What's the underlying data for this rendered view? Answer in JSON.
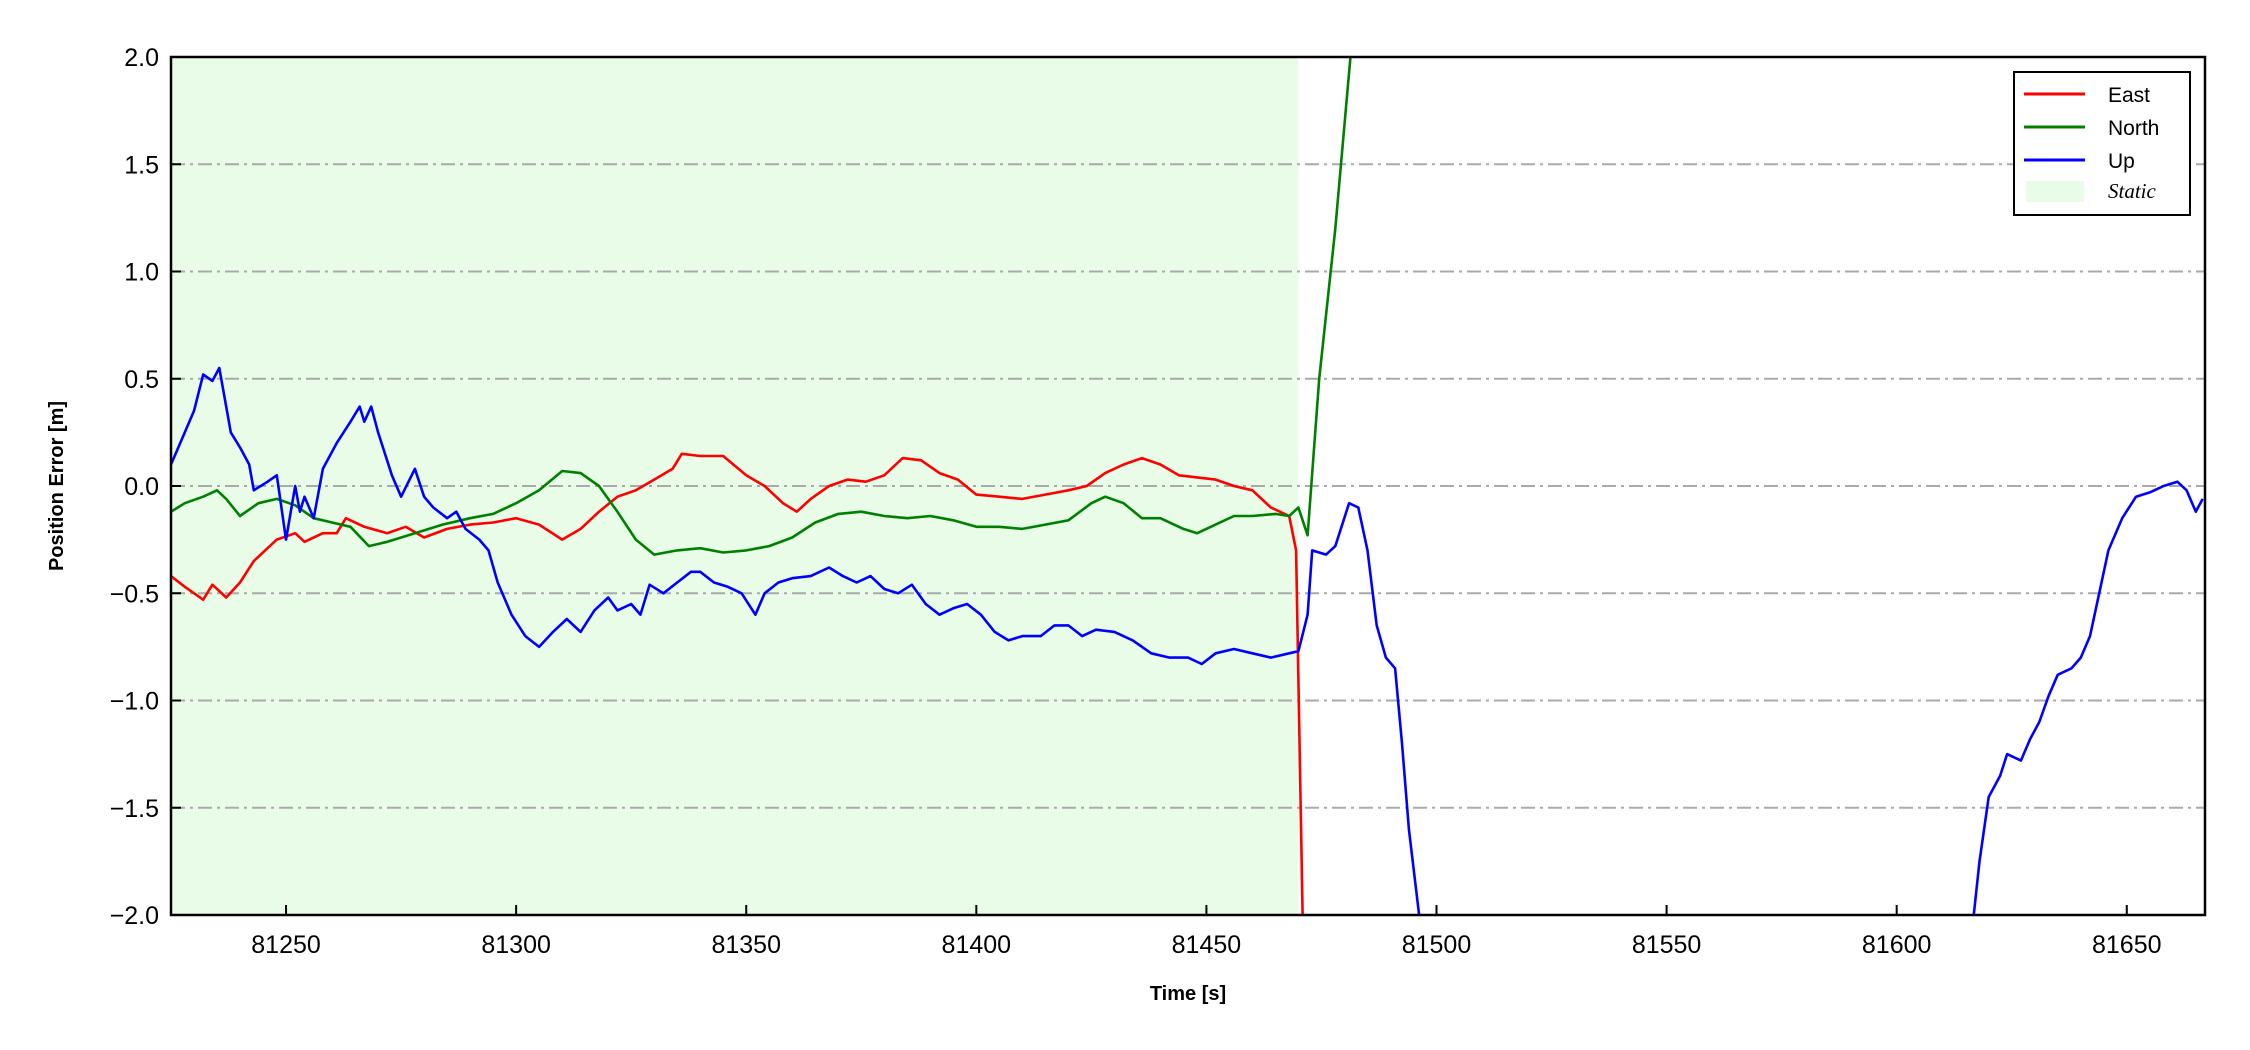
{
  "chart_data": {
    "type": "line",
    "xlabel": "Time [s]",
    "ylabel": "Position Error [m]",
    "xlim": [
      81225,
      81667
    ],
    "ylim": [
      -2.0,
      2.0
    ],
    "xticks": [
      81250,
      81300,
      81350,
      81400,
      81450,
      81500,
      81550,
      81600,
      81650
    ],
    "xtick_labels": [
      "81250",
      "81300",
      "81350",
      "81400",
      "81450",
      "81500",
      "81550",
      "81600",
      "81650"
    ],
    "yticks": [
      -2.0,
      -1.5,
      -1.0,
      -0.5,
      0.0,
      0.5,
      1.0,
      1.5,
      2.0
    ],
    "ytick_labels": [
      "−2.0",
      "−1.5",
      "−1.0",
      "−0.5",
      "0.0",
      "0.5",
      "1.0",
      "1.5",
      "2.0"
    ],
    "grid": "horizontal dash-dot",
    "legend_position": "top-right",
    "static_region": {
      "name": "Static",
      "x_start": 81225,
      "x_end": 81470,
      "color": "#e8fce8"
    },
    "series": [
      {
        "name": "East",
        "color": "#ff0000",
        "points": [
          [
            81225,
            -0.42
          ],
          [
            81228,
            -0.47
          ],
          [
            81232,
            -0.53
          ],
          [
            81234,
            -0.46
          ],
          [
            81237,
            -0.52
          ],
          [
            81240,
            -0.45
          ],
          [
            81243,
            -0.35
          ],
          [
            81248,
            -0.25
          ],
          [
            81252,
            -0.22
          ],
          [
            81254,
            -0.26
          ],
          [
            81258,
            -0.22
          ],
          [
            81261,
            -0.22
          ],
          [
            81263,
            -0.15
          ],
          [
            81267,
            -0.19
          ],
          [
            81272,
            -0.22
          ],
          [
            81276,
            -0.19
          ],
          [
            81280,
            -0.24
          ],
          [
            81285,
            -0.2
          ],
          [
            81290,
            -0.18
          ],
          [
            81295,
            -0.17
          ],
          [
            81300,
            -0.15
          ],
          [
            81305,
            -0.18
          ],
          [
            81310,
            -0.25
          ],
          [
            81314,
            -0.2
          ],
          [
            81318,
            -0.12
          ],
          [
            81322,
            -0.05
          ],
          [
            81326,
            -0.02
          ],
          [
            81330,
            0.03
          ],
          [
            81334,
            0.08
          ],
          [
            81336,
            0.15
          ],
          [
            81340,
            0.14
          ],
          [
            81345,
            0.14
          ],
          [
            81350,
            0.05
          ],
          [
            81354,
            0.0
          ],
          [
            81358,
            -0.08
          ],
          [
            81361,
            -0.12
          ],
          [
            81364,
            -0.06
          ],
          [
            81368,
            0.0
          ],
          [
            81372,
            0.03
          ],
          [
            81376,
            0.02
          ],
          [
            81380,
            0.05
          ],
          [
            81384,
            0.13
          ],
          [
            81388,
            0.12
          ],
          [
            81392,
            0.06
          ],
          [
            81396,
            0.03
          ],
          [
            81400,
            -0.04
          ],
          [
            81405,
            -0.05
          ],
          [
            81410,
            -0.06
          ],
          [
            81415,
            -0.04
          ],
          [
            81420,
            -0.02
          ],
          [
            81424,
            0.0
          ],
          [
            81428,
            0.06
          ],
          [
            81432,
            0.1
          ],
          [
            81436,
            0.13
          ],
          [
            81440,
            0.1
          ],
          [
            81444,
            0.05
          ],
          [
            81448,
            0.04
          ],
          [
            81452,
            0.03
          ],
          [
            81456,
            0.0
          ],
          [
            81460,
            -0.02
          ],
          [
            81464,
            -0.1
          ],
          [
            81468,
            -0.14
          ],
          [
            81469.5,
            -0.3
          ],
          [
            81471,
            -2.1
          ]
        ]
      },
      {
        "name": "North",
        "color": "#008000",
        "points": [
          [
            81225,
            -0.12
          ],
          [
            81228,
            -0.08
          ],
          [
            81232,
            -0.05
          ],
          [
            81235,
            -0.02
          ],
          [
            81237,
            -0.06
          ],
          [
            81240,
            -0.14
          ],
          [
            81244,
            -0.08
          ],
          [
            81248,
            -0.06
          ],
          [
            81252,
            -0.09
          ],
          [
            81256,
            -0.15
          ],
          [
            81260,
            -0.17
          ],
          [
            81264,
            -0.19
          ],
          [
            81268,
            -0.28
          ],
          [
            81272,
            -0.26
          ],
          [
            81278,
            -0.22
          ],
          [
            81284,
            -0.18
          ],
          [
            81290,
            -0.15
          ],
          [
            81295,
            -0.13
          ],
          [
            81300,
            -0.08
          ],
          [
            81305,
            -0.02
          ],
          [
            81310,
            0.07
          ],
          [
            81314,
            0.06
          ],
          [
            81318,
            0.0
          ],
          [
            81322,
            -0.12
          ],
          [
            81326,
            -0.25
          ],
          [
            81330,
            -0.32
          ],
          [
            81335,
            -0.3
          ],
          [
            81340,
            -0.29
          ],
          [
            81345,
            -0.31
          ],
          [
            81350,
            -0.3
          ],
          [
            81355,
            -0.28
          ],
          [
            81360,
            -0.24
          ],
          [
            81365,
            -0.17
          ],
          [
            81370,
            -0.13
          ],
          [
            81375,
            -0.12
          ],
          [
            81380,
            -0.14
          ],
          [
            81385,
            -0.15
          ],
          [
            81390,
            -0.14
          ],
          [
            81395,
            -0.16
          ],
          [
            81400,
            -0.19
          ],
          [
            81405,
            -0.19
          ],
          [
            81410,
            -0.2
          ],
          [
            81415,
            -0.18
          ],
          [
            81420,
            -0.16
          ],
          [
            81425,
            -0.08
          ],
          [
            81428,
            -0.05
          ],
          [
            81432,
            -0.08
          ],
          [
            81436,
            -0.15
          ],
          [
            81440,
            -0.15
          ],
          [
            81445,
            -0.2
          ],
          [
            81448,
            -0.22
          ],
          [
            81452,
            -0.18
          ],
          [
            81456,
            -0.14
          ],
          [
            81460,
            -0.14
          ],
          [
            81465,
            -0.13
          ],
          [
            81468,
            -0.14
          ],
          [
            81470,
            -0.1
          ],
          [
            81472,
            -0.23
          ],
          [
            81474.5,
            0.5
          ],
          [
            81478,
            1.2
          ],
          [
            81481.5,
            2.05
          ]
        ]
      },
      {
        "name": "Up",
        "color": "#0000ff",
        "points": [
          [
            81225,
            0.1
          ],
          [
            81227,
            0.2
          ],
          [
            81230,
            0.35
          ],
          [
            81232,
            0.52
          ],
          [
            81234,
            0.49
          ],
          [
            81235.5,
            0.55
          ],
          [
            81238,
            0.25
          ],
          [
            81240,
            0.18
          ],
          [
            81242,
            0.1
          ],
          [
            81243,
            -0.02
          ],
          [
            81246,
            0.02
          ],
          [
            81248,
            0.05
          ],
          [
            81250,
            -0.25
          ],
          [
            81252,
            0.0
          ],
          [
            81253,
            -0.12
          ],
          [
            81254,
            -0.05
          ],
          [
            81256,
            -0.15
          ],
          [
            81258,
            0.08
          ],
          [
            81261,
            0.2
          ],
          [
            81264,
            0.3
          ],
          [
            81266,
            0.37
          ],
          [
            81267,
            0.3
          ],
          [
            81268.5,
            0.37
          ],
          [
            81270,
            0.25
          ],
          [
            81273,
            0.05
          ],
          [
            81275,
            -0.05
          ],
          [
            81278,
            0.08
          ],
          [
            81280,
            -0.05
          ],
          [
            81282,
            -0.1
          ],
          [
            81285,
            -0.15
          ],
          [
            81287,
            -0.12
          ],
          [
            81289,
            -0.2
          ],
          [
            81292,
            -0.25
          ],
          [
            81294,
            -0.3
          ],
          [
            81296,
            -0.45
          ],
          [
            81299,
            -0.6
          ],
          [
            81302,
            -0.7
          ],
          [
            81305,
            -0.75
          ],
          [
            81308,
            -0.68
          ],
          [
            81311,
            -0.62
          ],
          [
            81314,
            -0.68
          ],
          [
            81317,
            -0.58
          ],
          [
            81320,
            -0.52
          ],
          [
            81322,
            -0.58
          ],
          [
            81325,
            -0.55
          ],
          [
            81327,
            -0.6
          ],
          [
            81329,
            -0.46
          ],
          [
            81332,
            -0.5
          ],
          [
            81335,
            -0.45
          ],
          [
            81338,
            -0.4
          ],
          [
            81340,
            -0.4
          ],
          [
            81343,
            -0.45
          ],
          [
            81346,
            -0.47
          ],
          [
            81349,
            -0.5
          ],
          [
            81352,
            -0.6
          ],
          [
            81354,
            -0.5
          ],
          [
            81357,
            -0.45
          ],
          [
            81360,
            -0.43
          ],
          [
            81364,
            -0.42
          ],
          [
            81368,
            -0.38
          ],
          [
            81371,
            -0.42
          ],
          [
            81374,
            -0.45
          ],
          [
            81377,
            -0.42
          ],
          [
            81380,
            -0.48
          ],
          [
            81383,
            -0.5
          ],
          [
            81386,
            -0.46
          ],
          [
            81389,
            -0.55
          ],
          [
            81392,
            -0.6
          ],
          [
            81395,
            -0.57
          ],
          [
            81398,
            -0.55
          ],
          [
            81401,
            -0.6
          ],
          [
            81404,
            -0.68
          ],
          [
            81407,
            -0.72
          ],
          [
            81410,
            -0.7
          ],
          [
            81414,
            -0.7
          ],
          [
            81417,
            -0.65
          ],
          [
            81420,
            -0.65
          ],
          [
            81423,
            -0.7
          ],
          [
            81426,
            -0.67
          ],
          [
            81430,
            -0.68
          ],
          [
            81434,
            -0.72
          ],
          [
            81438,
            -0.78
          ],
          [
            81442,
            -0.8
          ],
          [
            81446,
            -0.8
          ],
          [
            81449,
            -0.83
          ],
          [
            81452,
            -0.78
          ],
          [
            81456,
            -0.76
          ],
          [
            81460,
            -0.78
          ],
          [
            81464,
            -0.8
          ],
          [
            81468,
            -0.78
          ],
          [
            81470,
            -0.77
          ],
          [
            81472,
            -0.6
          ],
          [
            81473,
            -0.3
          ],
          [
            81476,
            -0.32
          ],
          [
            81478,
            -0.28
          ],
          [
            81481,
            -0.08
          ],
          [
            81483,
            -0.1
          ],
          [
            81485,
            -0.3
          ],
          [
            81487,
            -0.65
          ],
          [
            81489,
            -0.8
          ],
          [
            81491,
            -0.85
          ],
          [
            81492.5,
            -1.2
          ],
          [
            81494,
            -1.6
          ],
          [
            81496.5,
            -2.05
          ],
          null,
          [
            81616.5,
            -2.05
          ],
          [
            81618,
            -1.75
          ],
          [
            81620,
            -1.45
          ],
          [
            81622.5,
            -1.35
          ],
          [
            81624,
            -1.25
          ],
          [
            81627,
            -1.28
          ],
          [
            81629,
            -1.18
          ],
          [
            81631,
            -1.1
          ],
          [
            81633,
            -0.98
          ],
          [
            81635,
            -0.88
          ],
          [
            81638,
            -0.85
          ],
          [
            81640,
            -0.8
          ],
          [
            81642,
            -0.7
          ],
          [
            81644,
            -0.5
          ],
          [
            81646,
            -0.3
          ],
          [
            81649,
            -0.15
          ],
          [
            81652,
            -0.05
          ],
          [
            81655,
            -0.03
          ],
          [
            81658,
            0.0
          ],
          [
            81661,
            0.02
          ],
          [
            81663,
            -0.02
          ],
          [
            81665,
            -0.12
          ],
          [
            81666.5,
            -0.06
          ]
        ]
      }
    ]
  }
}
